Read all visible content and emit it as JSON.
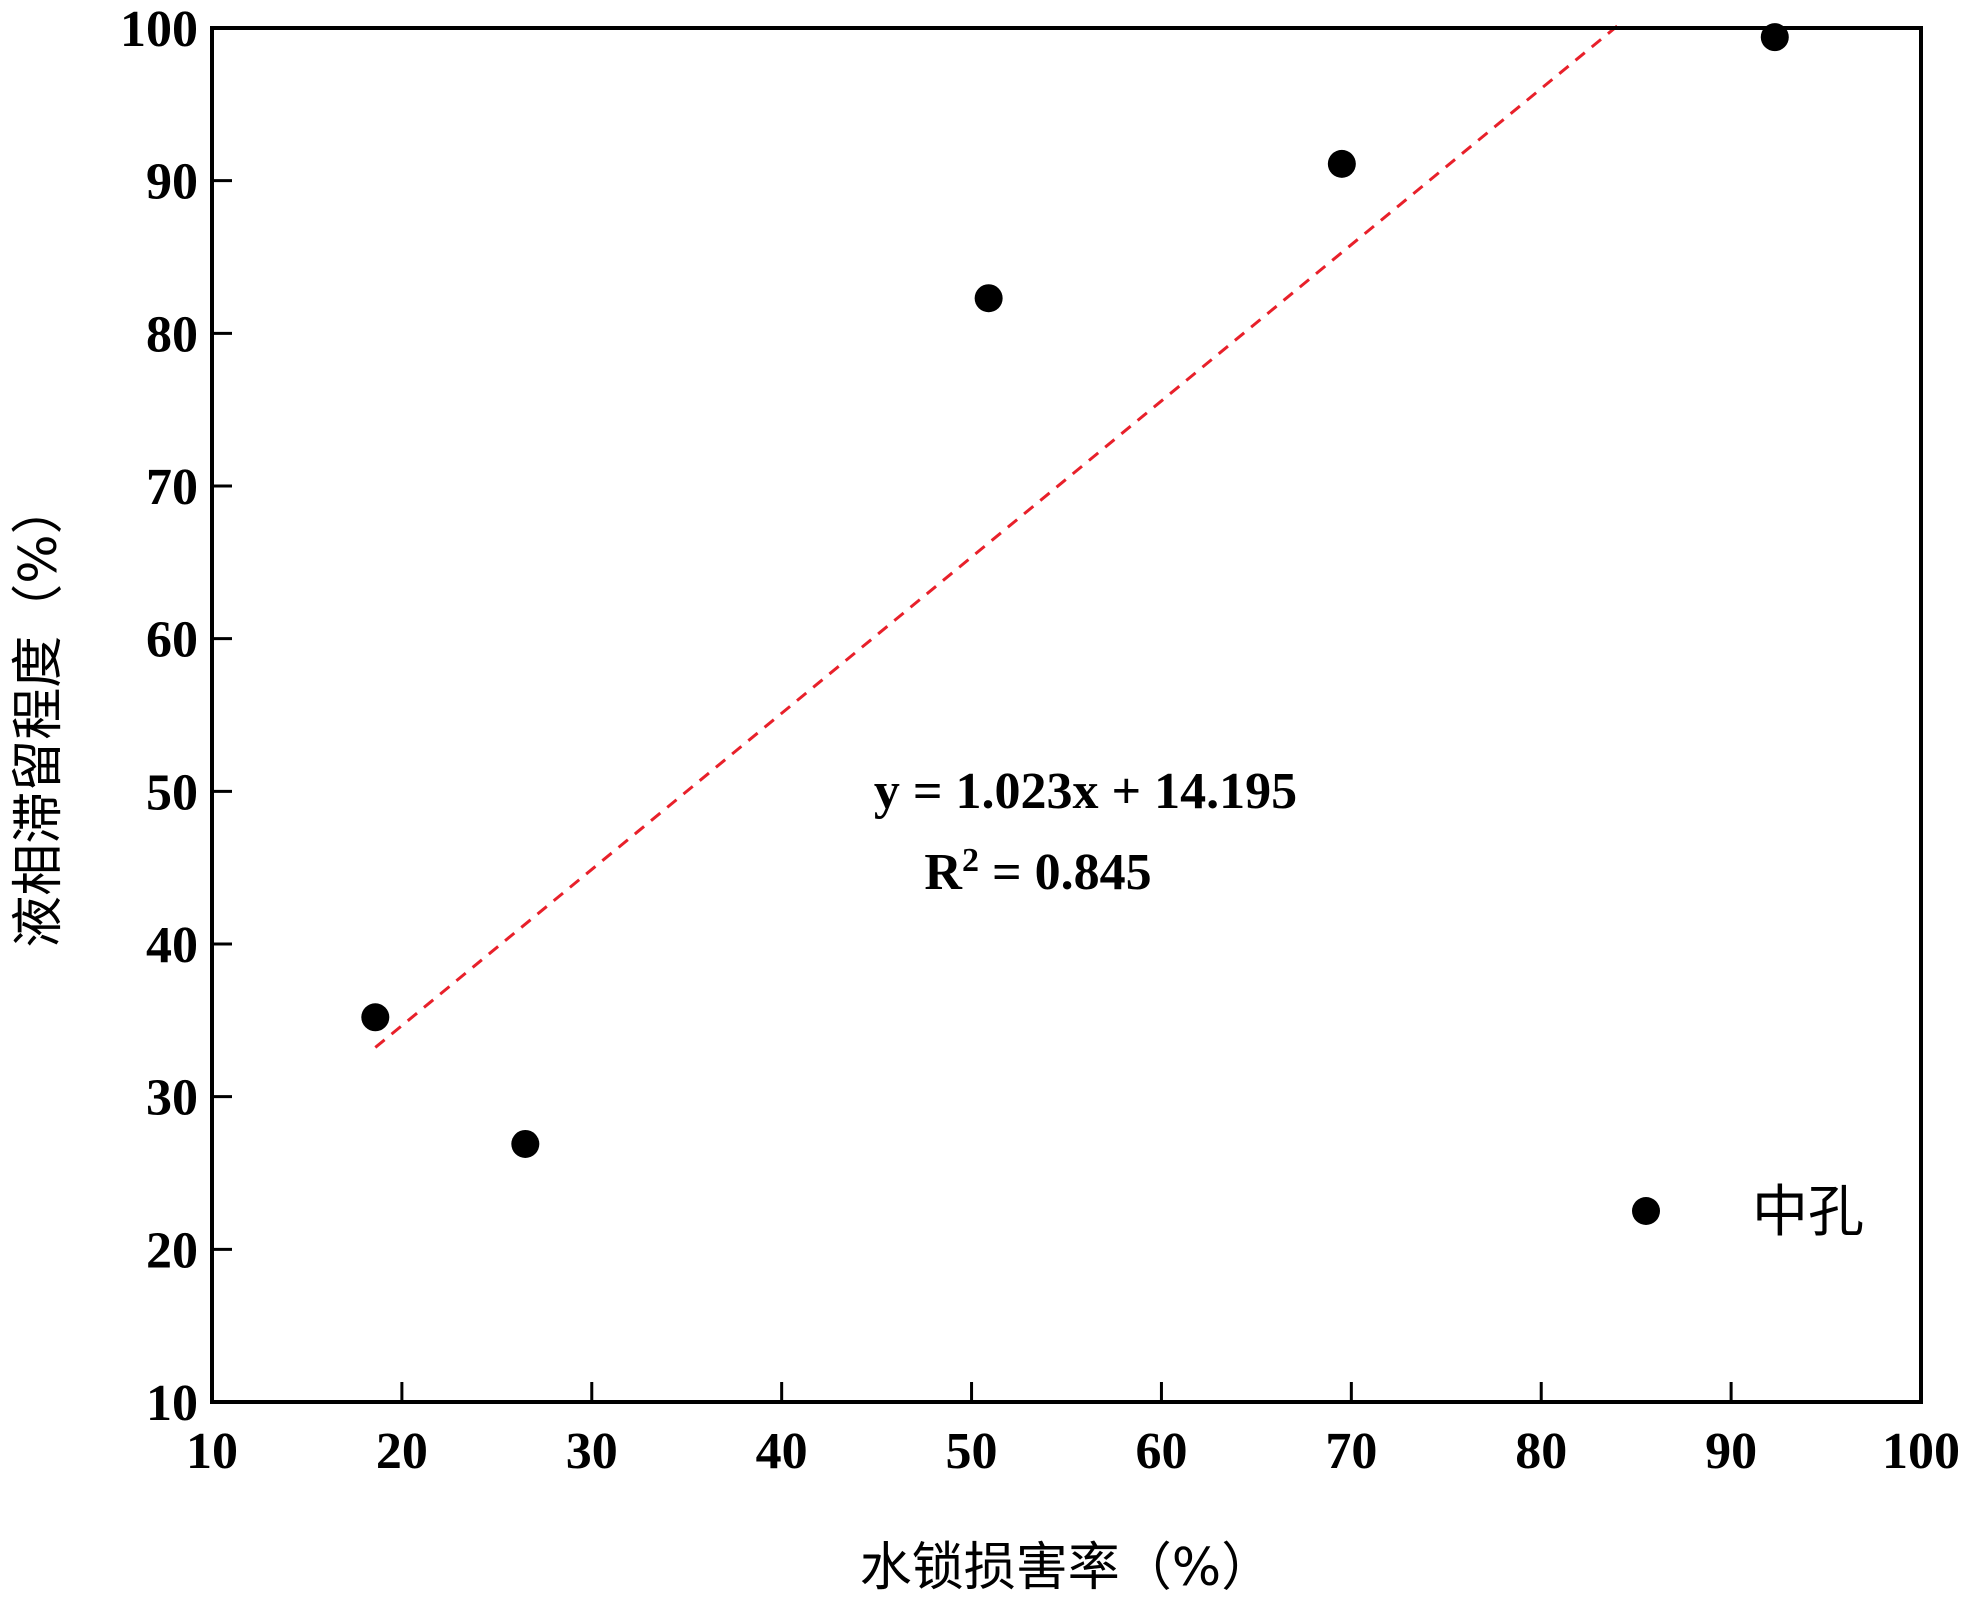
{
  "chart_data": {
    "type": "scatter",
    "xlabel": "水锁损害率（%）",
    "ylabel": "液相滞留程度（%）",
    "xlim": [
      10,
      100
    ],
    "ylim": [
      10,
      100
    ],
    "xticks": [
      10,
      20,
      30,
      40,
      50,
      60,
      70,
      80,
      90,
      100
    ],
    "yticks": [
      10,
      20,
      30,
      40,
      50,
      60,
      70,
      80,
      90,
      100
    ],
    "grid": false,
    "legend_position": "bottom-right",
    "series": [
      {
        "name": "中孔",
        "color": "#000000",
        "marker": "filled-circle",
        "points": [
          {
            "x": 18.6,
            "y": 35.2
          },
          {
            "x": 26.5,
            "y": 26.9
          },
          {
            "x": 50.9,
            "y": 82.3
          },
          {
            "x": 69.5,
            "y": 91.1
          },
          {
            "x": 92.3,
            "y": 99.4
          }
        ]
      }
    ],
    "trendline": {
      "color": "#e8202a",
      "style": "dashed",
      "slope": 1.023,
      "intercept": 14.195,
      "x_range": [
        18.6,
        84.0
      ]
    },
    "annotations": {
      "equation": "y = 1.023x + 14.195",
      "r2_prefix": "R",
      "r2_sup": "2",
      "r2_value": " = 0.845"
    }
  }
}
